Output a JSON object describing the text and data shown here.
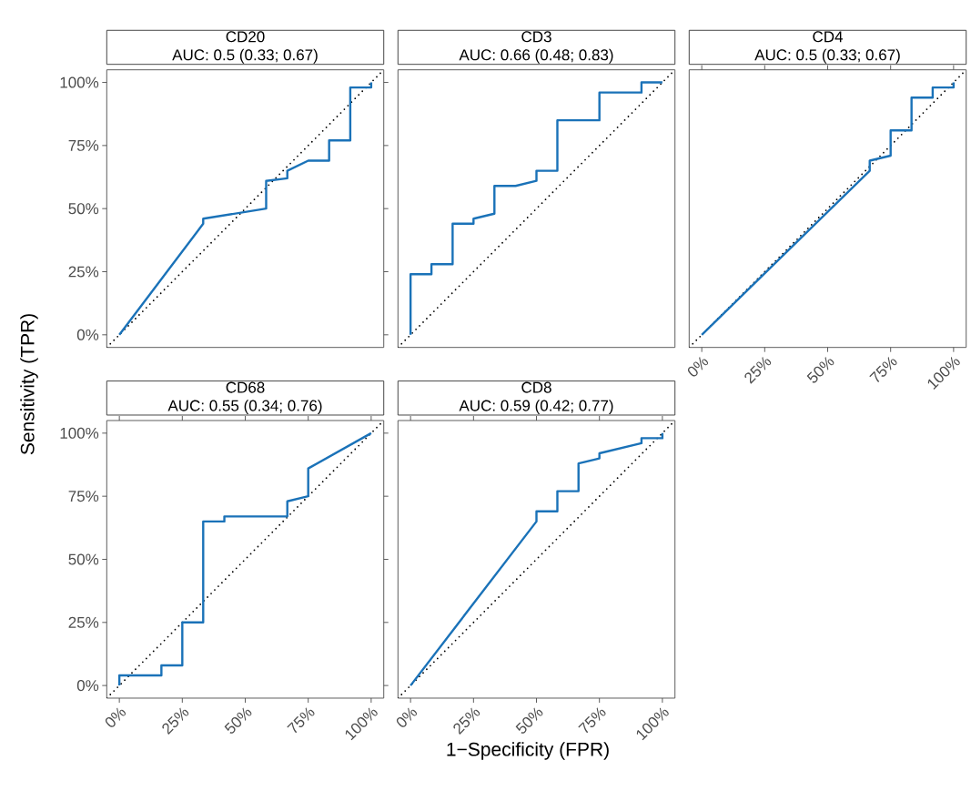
{
  "chart_data": [
    {
      "type": "line",
      "title": "CD20",
      "subtitle": "AUC: 0.5 (0.33; 0.67)",
      "annotations": [
        "Sensitivity (TPR)",
        "1−Specificity (FPR)"
      ],
      "xlim": [
        -5,
        105
      ],
      "ylim": [
        -5,
        105
      ],
      "yticks": [
        {
          "value": 0,
          "label": "0%"
        },
        {
          "value": 25,
          "label": "25%"
        },
        {
          "value": 50,
          "label": "50%"
        },
        {
          "value": 75,
          "label": "75%"
        },
        {
          "value": 100,
          "label": "100%"
        }
      ],
      "tick_labels": "y",
      "series": [
        {
          "type": "line",
          "color": "#000000",
          "line_style": "dotted",
          "x": [
            -5,
            105
          ],
          "values": [
            -5,
            105
          ]
        },
        {
          "color": "#1a72b8",
          "line_style": "solid",
          "x": [
            0,
            33.3,
            33.3,
            58.3,
            58.3,
            66.7,
            66.7,
            75,
            83.3,
            83.3,
            91.7,
            91.7,
            100,
            100
          ],
          "values": [
            0,
            44,
            46,
            50,
            61,
            62,
            65,
            69,
            69,
            77,
            77,
            98,
            98,
            100
          ]
        }
      ]
    },
    {
      "type": "line",
      "title": "CD3",
      "subtitle": "AUC: 0.66 (0.48; 0.83)",
      "xlim": [
        -5,
        105
      ],
      "ylim": [
        -5,
        105
      ],
      "tick_labels": false,
      "series": [
        {
          "type": "line",
          "color": "#000000",
          "line_style": "dotted",
          "x": [
            -5,
            105
          ],
          "values": [
            -5,
            105
          ]
        },
        {
          "color": "#1a72b8",
          "line_style": "solid",
          "x": [
            0,
            0,
            8.3,
            8.3,
            16.7,
            16.7,
            25,
            25,
            33.3,
            33.3,
            41.7,
            50,
            50,
            58.3,
            58.3,
            75,
            75,
            91.7,
            91.7,
            100
          ],
          "values": [
            0,
            24,
            24,
            28,
            28,
            44,
            44,
            46,
            48,
            59,
            59,
            61,
            65,
            65,
            85,
            85,
            96,
            96,
            100,
            100
          ]
        }
      ]
    },
    {
      "type": "line",
      "title": "CD4",
      "subtitle": "AUC: 0.5 (0.33; 0.67)",
      "xlim": [
        -5,
        105
      ],
      "ylim": [
        -5,
        105
      ],
      "xticks": [
        {
          "value": 0,
          "label": "0%"
        },
        {
          "value": 25,
          "label": "25%"
        },
        {
          "value": 50,
          "label": "50%"
        },
        {
          "value": 75,
          "label": "75%"
        },
        {
          "value": 100,
          "label": "100%"
        }
      ],
      "tick_labels": "x",
      "series": [
        {
          "type": "line",
          "color": "#000000",
          "line_style": "dotted",
          "x": [
            -5,
            105
          ],
          "values": [
            -5,
            105
          ]
        },
        {
          "color": "#1a72b8",
          "line_style": "solid",
          "x": [
            0,
            66.7,
            66.7,
            75,
            75,
            83.3,
            83.3,
            91.7,
            91.7,
            100,
            100
          ],
          "values": [
            0,
            65,
            69,
            71,
            81,
            81,
            94,
            94,
            98,
            98,
            100
          ]
        }
      ]
    },
    {
      "type": "line",
      "title": "CD68",
      "subtitle": "AUC: 0.55 (0.34; 0.76)",
      "xlim": [
        -5,
        105
      ],
      "ylim": [
        -5,
        105
      ],
      "xticks": [
        {
          "value": 0,
          "label": "0%"
        },
        {
          "value": 25,
          "label": "25%"
        },
        {
          "value": 50,
          "label": "50%"
        },
        {
          "value": 75,
          "label": "75%"
        },
        {
          "value": 100,
          "label": "100%"
        }
      ],
      "yticks": [
        {
          "value": 0,
          "label": "0%"
        },
        {
          "value": 25,
          "label": "25%"
        },
        {
          "value": 50,
          "label": "50%"
        },
        {
          "value": 75,
          "label": "75%"
        },
        {
          "value": 100,
          "label": "100%"
        }
      ],
      "series": [
        {
          "type": "line",
          "color": "#000000",
          "line_style": "dotted",
          "x": [
            -5,
            105
          ],
          "values": [
            -5,
            105
          ]
        },
        {
          "color": "#1a72b8",
          "line_style": "solid",
          "x": [
            0,
            0,
            16.7,
            16.7,
            25,
            25,
            33.3,
            33.3,
            41.7,
            41.7,
            66.7,
            66.7,
            75,
            75,
            100
          ],
          "values": [
            0,
            4,
            4,
            8,
            8,
            25,
            25,
            65,
            65,
            67,
            67,
            73,
            75,
            86,
            100
          ]
        }
      ]
    },
    {
      "type": "line",
      "title": "CD8",
      "subtitle": "AUC: 0.59 (0.42; 0.77)",
      "xlim": [
        -5,
        105
      ],
      "ylim": [
        -5,
        105
      ],
      "xticks": [
        {
          "value": 0,
          "label": "0%"
        },
        {
          "value": 25,
          "label": "25%"
        },
        {
          "value": 50,
          "label": "50%"
        },
        {
          "value": 75,
          "label": "75%"
        },
        {
          "value": 100,
          "label": "100%"
        }
      ],
      "tick_labels": "x",
      "series": [
        {
          "type": "line",
          "color": "#000000",
          "line_style": "dotted",
          "x": [
            -5,
            105
          ],
          "values": [
            -5,
            105
          ]
        },
        {
          "color": "#1a72b8",
          "line_style": "solid",
          "x": [
            0,
            50,
            50,
            58.3,
            58.3,
            66.7,
            66.7,
            75,
            75,
            91.7,
            91.7,
            100,
            100
          ],
          "values": [
            0,
            65,
            69,
            69,
            77,
            77,
            88,
            90,
            92,
            96,
            98,
            98,
            100
          ]
        }
      ]
    }
  ]
}
